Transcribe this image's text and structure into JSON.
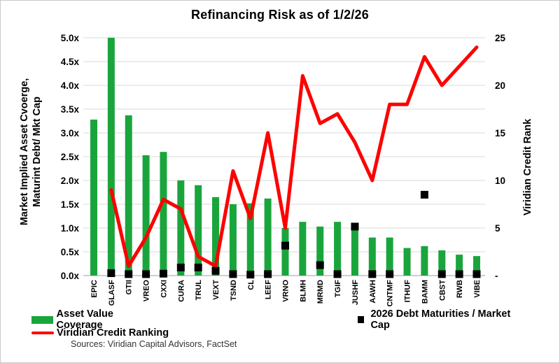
{
  "title": "Refinancing Risk as of 1/2/26",
  "legend": {
    "bar_label": "Asset Value Coverage",
    "scatter_label": "2026 Debt Maturities / Market Cap",
    "line_label": "Viridian Credit Ranking"
  },
  "source_note": "Sources: Viridian Capital Advisors, FactSet",
  "colors": {
    "bar": "#1AA53C",
    "line": "#FE0000",
    "scatter": "#000000",
    "grid": "#D9D9D9",
    "axis": "#BFBFBF",
    "text": "#000000"
  },
  "chart_data": {
    "type": "combo",
    "title": "Refinancing Risk as of 1/2/26",
    "categories": [
      "EPIC",
      "GLASF",
      "GTII",
      "VREO",
      "CXXI",
      "CURA",
      "TRUL",
      "VEXT",
      "TSND",
      "CL",
      "LEEF",
      "VRNO",
      "BLMH",
      "MRMD",
      "TGIF",
      "JUSHF",
      "AAWH",
      "CNTMF",
      "ITHUF",
      "BAMM",
      "CBST",
      "RWB",
      "VIBE"
    ],
    "series": [
      {
        "name": "Asset Value Coverage",
        "type": "bar",
        "axis": "left",
        "values": [
          3.28,
          5.0,
          3.37,
          2.53,
          2.6,
          2.0,
          1.9,
          1.65,
          1.5,
          1.52,
          1.62,
          1.0,
          1.13,
          1.03,
          1.13,
          1.05,
          0.8,
          0.8,
          0.58,
          0.62,
          0.53,
          0.44,
          0.41
        ]
      },
      {
        "name": "2026 Debt Maturities / Market Cap",
        "type": "scatter",
        "axis": "left",
        "values": [
          null,
          0.05,
          0.03,
          0.03,
          0.04,
          0.17,
          0.17,
          0.1,
          0.03,
          0.02,
          0.03,
          0.63,
          null,
          0.22,
          0.03,
          1.03,
          0.03,
          0.03,
          null,
          1.7,
          0.03,
          0.03,
          0.03
        ]
      },
      {
        "name": "Viridian Credit Ranking",
        "type": "line",
        "axis": "right",
        "values": [
          null,
          9,
          1,
          4,
          8,
          7,
          2,
          1,
          11,
          6,
          15,
          5,
          21,
          16,
          17,
          14,
          10,
          18,
          18,
          23,
          20,
          22,
          24
        ]
      }
    ],
    "left_axis": {
      "title": "Market Implied Asset Cvoerge, Maturint Debt/ Mkt Cap",
      "title_lines": [
        "Market Implied Asset Cvoerge,",
        "Maturint Debt/ Mkt Cap"
      ],
      "tick_labels": [
        "0.0x",
        "0.5x",
        "1.0x",
        "1.5x",
        "2.0x",
        "2.5x",
        "3.0x",
        "3.5x",
        "4.0x",
        "4.5x",
        "5.0x"
      ],
      "tick_values": [
        0,
        0.5,
        1,
        1.5,
        2,
        2.5,
        3,
        3.5,
        4,
        4.5,
        5
      ],
      "min": 0,
      "max": 5
    },
    "right_axis": {
      "title": "Viridian Credit Rank",
      "tick_labels": [
        "-",
        "5",
        "10",
        "15",
        "20",
        "25"
      ],
      "tick_values": [
        0,
        5,
        10,
        15,
        20,
        25
      ],
      "min": 0,
      "max": 25
    },
    "grid": true,
    "legend_position": "bottom"
  }
}
